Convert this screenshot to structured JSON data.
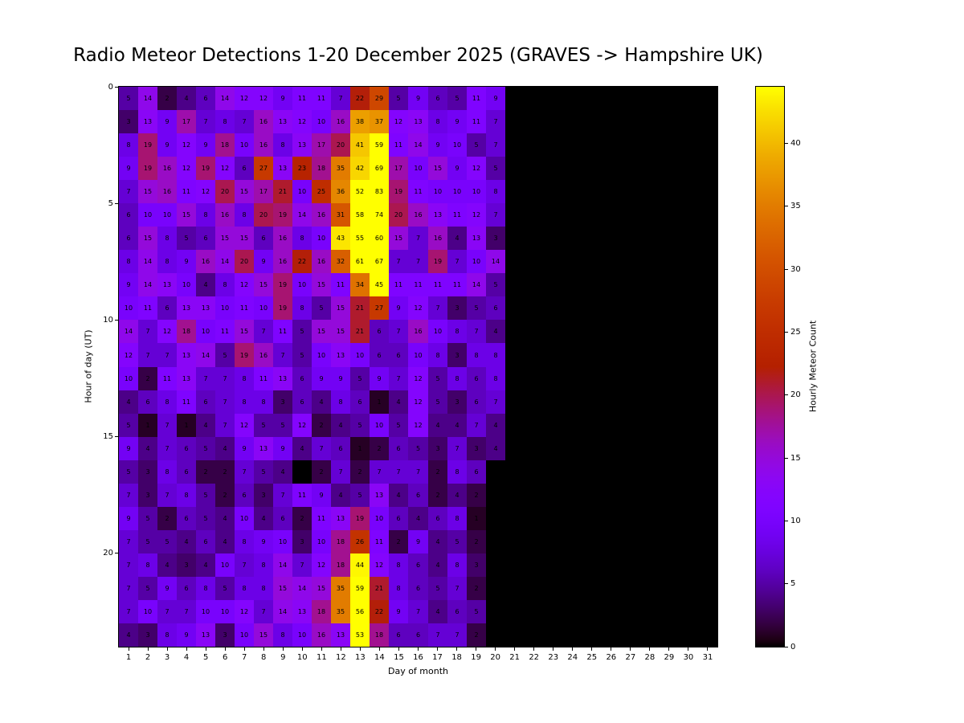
{
  "chart_data": {
    "type": "heatmap",
    "title": "Radio Meteor Detections 1-20 December 2025 (GRAVES -> Hampshire UK)",
    "xlabel": "Day of month",
    "ylabel": "Hour of day (UT)",
    "colorbar_label": "Hourly Meteor Count",
    "colormap": "gnuplot",
    "vmin": 0,
    "vmax": 44.5,
    "no_data_color": "#000000",
    "key_colors": {
      "zero": "#000000",
      "low_purple": "#56008c",
      "mid_violet": "#7903fb",
      "magenta": "#a2175b",
      "red": "#b42000",
      "orange": "#e38000",
      "max_yellow": "#ffff00"
    },
    "x_ticks": [
      1,
      2,
      3,
      4,
      5,
      6,
      7,
      8,
      9,
      10,
      11,
      12,
      13,
      14,
      15,
      16,
      17,
      18,
      19,
      20,
      21,
      22,
      23,
      24,
      25,
      26,
      27,
      28,
      29,
      30,
      31
    ],
    "y_ticks": [
      0,
      5,
      10,
      15,
      20
    ],
    "colorbar_ticks": [
      0,
      5,
      10,
      15,
      20,
      25,
      30,
      35,
      40
    ],
    "hours": [
      0,
      1,
      2,
      3,
      4,
      5,
      6,
      7,
      8,
      9,
      10,
      11,
      12,
      13,
      14,
      15,
      16,
      17,
      18,
      19,
      20,
      21,
      22,
      23
    ],
    "days_with_data": 20,
    "total_days_shown": 31,
    "values": [
      [
        5,
        14,
        2,
        4,
        6,
        14,
        12,
        12,
        9,
        11,
        11,
        7,
        22,
        29,
        5,
        9,
        6,
        5,
        11,
        9
      ],
      [
        3,
        13,
        9,
        17,
        7,
        8,
        7,
        16,
        13,
        12,
        10,
        16,
        38,
        37,
        12,
        13,
        8,
        9,
        11,
        7
      ],
      [
        8,
        19,
        9,
        12,
        9,
        18,
        10,
        16,
        8,
        13,
        17,
        20,
        41,
        59,
        11,
        14,
        9,
        10,
        5,
        7
      ],
      [
        9,
        19,
        16,
        12,
        19,
        12,
        6,
        27,
        13,
        23,
        18,
        35,
        42,
        69,
        17,
        10,
        15,
        9,
        12,
        5
      ],
      [
        7,
        15,
        16,
        11,
        12,
        20,
        15,
        17,
        21,
        10,
        25,
        36,
        52,
        83,
        19,
        11,
        10,
        10,
        10,
        8
      ],
      [
        6,
        10,
        10,
        15,
        8,
        16,
        8,
        20,
        19,
        14,
        16,
        31,
        58,
        74,
        20,
        16,
        13,
        11,
        12,
        7
      ],
      [
        6,
        15,
        8,
        5,
        6,
        15,
        15,
        6,
        16,
        8,
        10,
        43,
        55,
        60,
        15,
        7,
        16,
        4,
        13,
        3
      ],
      [
        8,
        14,
        8,
        9,
        16,
        14,
        20,
        9,
        16,
        22,
        16,
        32,
        61,
        67,
        7,
        7,
        19,
        7,
        10,
        14
      ],
      [
        9,
        14,
        13,
        10,
        4,
        8,
        12,
        15,
        19,
        10,
        15,
        11,
        34,
        45,
        11,
        11,
        11,
        11,
        14,
        5
      ],
      [
        10,
        11,
        6,
        13,
        13,
        10,
        11,
        10,
        19,
        8,
        5,
        15,
        21,
        27,
        9,
        12,
        7,
        3,
        5,
        6
      ],
      [
        14,
        7,
        12,
        18,
        10,
        11,
        15,
        7,
        11,
        5,
        15,
        15,
        21,
        6,
        7,
        16,
        10,
        8,
        7,
        4
      ],
      [
        12,
        7,
        7,
        13,
        14,
        5,
        19,
        16,
        7,
        5,
        10,
        13,
        10,
        6,
        6,
        10,
        8,
        3,
        8,
        8
      ],
      [
        10,
        2,
        11,
        13,
        7,
        7,
        8,
        11,
        13,
        6,
        9,
        9,
        5,
        9,
        7,
        12,
        5,
        8,
        6,
        8
      ],
      [
        4,
        6,
        8,
        11,
        6,
        7,
        8,
        8,
        3,
        6,
        4,
        8,
        6,
        1,
        4,
        12,
        5,
        3,
        6,
        7
      ],
      [
        5,
        1,
        7,
        1,
        4,
        7,
        12,
        5,
        5,
        12,
        2,
        4,
        5,
        10,
        5,
        12,
        4,
        4,
        7,
        4
      ],
      [
        9,
        4,
        7,
        6,
        5,
        4,
        9,
        13,
        9,
        4,
        7,
        6,
        1,
        2,
        6,
        5,
        3,
        7,
        3,
        4
      ],
      [
        5,
        3,
        8,
        6,
        2,
        2,
        7,
        5,
        4,
        0,
        2,
        7,
        2,
        7,
        7,
        7,
        2,
        8,
        6,
        0
      ],
      [
        7,
        3,
        7,
        8,
        5,
        2,
        6,
        3,
        7,
        11,
        9,
        4,
        5,
        13,
        4,
        6,
        2,
        4,
        2,
        0
      ],
      [
        9,
        5,
        2,
        6,
        5,
        4,
        10,
        4,
        6,
        2,
        11,
        13,
        19,
        10,
        6,
        4,
        6,
        8,
        1,
        0
      ],
      [
        7,
        5,
        5,
        4,
        6,
        4,
        8,
        9,
        10,
        3,
        10,
        18,
        26,
        11,
        2,
        9,
        4,
        5,
        2,
        0
      ],
      [
        7,
        8,
        4,
        3,
        4,
        10,
        7,
        8,
        14,
        7,
        12,
        18,
        44,
        12,
        8,
        6,
        4,
        8,
        3,
        0
      ],
      [
        7,
        5,
        9,
        6,
        8,
        5,
        8,
        8,
        15,
        14,
        15,
        35,
        59,
        21,
        8,
        6,
        5,
        7,
        2,
        0
      ],
      [
        7,
        10,
        7,
        7,
        10,
        10,
        12,
        7,
        14,
        13,
        18,
        35,
        56,
        22,
        9,
        7,
        4,
        6,
        5,
        0
      ],
      [
        4,
        3,
        8,
        9,
        13,
        3,
        10,
        15,
        8,
        10,
        16,
        13,
        53,
        18,
        6,
        6,
        7,
        7,
        2,
        0
      ]
    ]
  }
}
